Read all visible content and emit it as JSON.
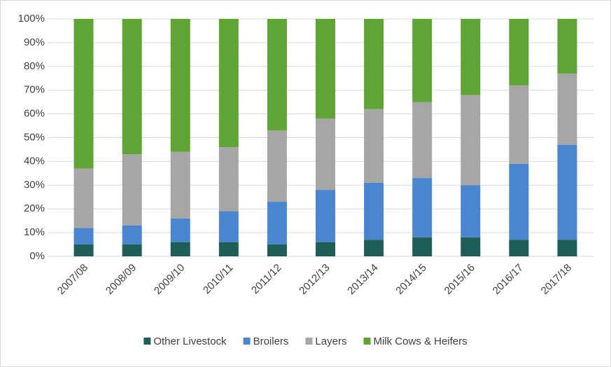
{
  "chart_data": {
    "type": "stacked_bar_100",
    "categories": [
      "2007/08",
      "2008/09",
      "2009/10",
      "2010/11",
      "2011/12",
      "2012/13",
      "2013/14",
      "2014/15",
      "2015/16",
      "2016/17",
      "2017/18"
    ],
    "series": [
      {
        "name": "Other Livestock",
        "color": "#1e5e56",
        "values": [
          5,
          5,
          6,
          6,
          5,
          6,
          7,
          8,
          8,
          7,
          7
        ]
      },
      {
        "name": "Broilers",
        "color": "#4a86cf",
        "values": [
          7,
          8,
          10,
          13,
          18,
          22,
          24,
          25,
          22,
          32,
          40
        ]
      },
      {
        "name": "Layers",
        "color": "#a6a6a6",
        "values": [
          25,
          30,
          28,
          27,
          30,
          30,
          31,
          32,
          38,
          33,
          30
        ]
      },
      {
        "name": "Milk Cows & Heifers",
        "color": "#5fa535",
        "values": [
          63,
          57,
          56,
          54,
          47,
          42,
          38,
          35,
          32,
          28,
          23
        ]
      }
    ],
    "ylim": [
      0,
      100
    ],
    "yticks": [
      {
        "value": 0,
        "label": "0%"
      },
      {
        "value": 10,
        "label": "10%"
      },
      {
        "value": 20,
        "label": "20%"
      },
      {
        "value": 30,
        "label": "30%"
      },
      {
        "value": 40,
        "label": "40%"
      },
      {
        "value": 50,
        "label": "50%"
      },
      {
        "value": 60,
        "label": "60%"
      },
      {
        "value": 70,
        "label": "70%"
      },
      {
        "value": 80,
        "label": "80%"
      },
      {
        "value": 90,
        "label": "90%"
      },
      {
        "value": 100,
        "label": "100%"
      }
    ],
    "grid": true,
    "legend": "bottom"
  }
}
